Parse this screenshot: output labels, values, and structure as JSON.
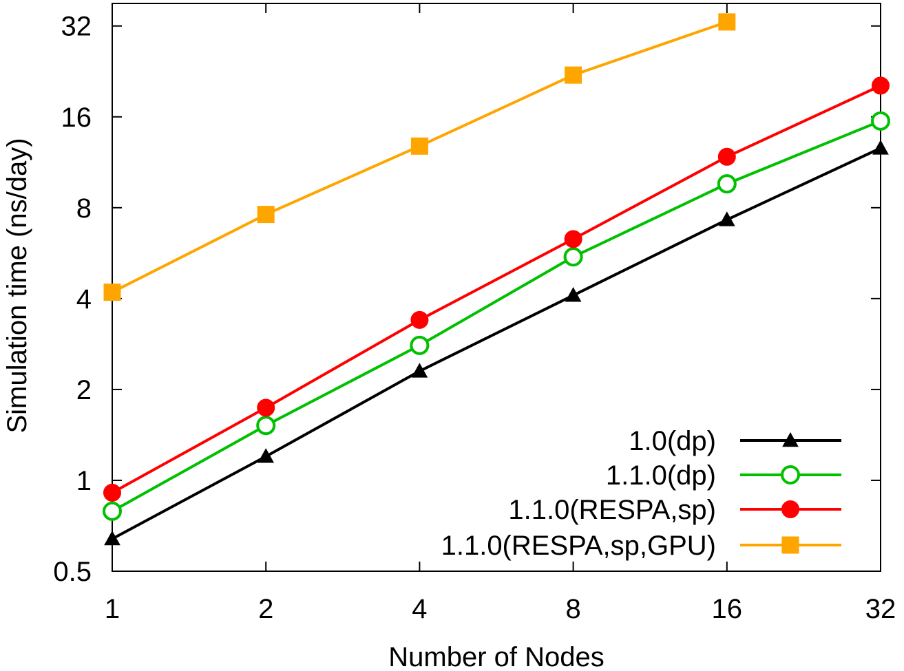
{
  "chart_data": {
    "type": "line",
    "title": "",
    "xlabel": "Number of Nodes",
    "ylabel": "Simulation time (ns/day)",
    "x_scale": "log2",
    "y_scale": "log2",
    "xlim": [
      1,
      32
    ],
    "ylim": [
      0.5,
      38
    ],
    "x_ticks": [
      1,
      2,
      4,
      8,
      16,
      32
    ],
    "x_tick_labels": [
      "1",
      "2",
      "4",
      "8",
      "16",
      "32"
    ],
    "y_ticks": [
      0.5,
      1,
      2,
      4,
      8,
      16,
      32
    ],
    "y_tick_labels": [
      "0.5",
      "1",
      "2",
      "4",
      "8",
      "16",
      "32"
    ],
    "grid": false,
    "legend_position": "bottom-right",
    "series": [
      {
        "name": "1.0(dp)",
        "color": "#000000",
        "marker": "triangle",
        "x": [
          1,
          2,
          4,
          8,
          16,
          32
        ],
        "y": [
          0.64,
          1.2,
          2.3,
          4.1,
          7.3,
          12.6
        ]
      },
      {
        "name": "1.1.0(dp)",
        "color": "#00c000",
        "marker": "circle-open",
        "x": [
          1,
          2,
          4,
          8,
          16,
          32
        ],
        "y": [
          0.79,
          1.52,
          2.8,
          5.5,
          9.6,
          15.5
        ]
      },
      {
        "name": "1.1.0(RESPA,sp)",
        "color": "#ff0000",
        "marker": "circle-filled",
        "x": [
          1,
          2,
          4,
          8,
          16,
          32
        ],
        "y": [
          0.91,
          1.74,
          3.4,
          6.3,
          11.8,
          20.3
        ]
      },
      {
        "name": "1.1.0(RESPA,sp,GPU)",
        "color": "#ffa500",
        "marker": "square",
        "x": [
          1,
          2,
          4,
          8,
          16
        ],
        "y": [
          4.2,
          7.6,
          12.8,
          22.0,
          33.0
        ]
      }
    ]
  }
}
